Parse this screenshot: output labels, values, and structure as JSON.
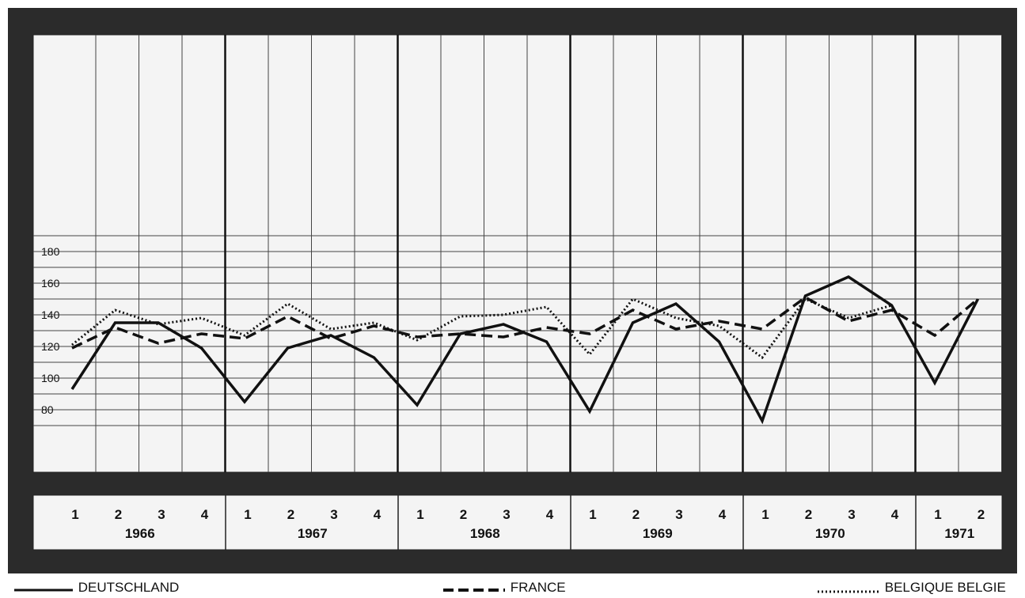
{
  "chart_data": {
    "type": "line",
    "x": [
      "1966-1",
      "1966-2",
      "1966-3",
      "1966-4",
      "1967-1",
      "1967-2",
      "1967-3",
      "1967-4",
      "1968-1",
      "1968-2",
      "1968-3",
      "1968-4",
      "1969-1",
      "1969-2",
      "1969-3",
      "1969-4",
      "1970-1",
      "1970-2",
      "1970-3",
      "1970-4",
      "1971-1",
      "1971-2"
    ],
    "quarter_labels": [
      "1",
      "2",
      "3",
      "4",
      "1",
      "2",
      "3",
      "4",
      "1",
      "2",
      "3",
      "4",
      "1",
      "2",
      "3",
      "4",
      "1",
      "2",
      "3",
      "4",
      "1",
      "2"
    ],
    "years": [
      {
        "label": "1966",
        "quarters": 4
      },
      {
        "label": "1967",
        "quarters": 4
      },
      {
        "label": "1968",
        "quarters": 4
      },
      {
        "label": "1969",
        "quarters": 4
      },
      {
        "label": "1970",
        "quarters": 4
      },
      {
        "label": "1971",
        "quarters": 2
      }
    ],
    "y_ticks": [
      80,
      100,
      120,
      140,
      160,
      180
    ],
    "ylim": [
      70,
      190
    ],
    "grid": true,
    "legend_position": "bottom",
    "series": [
      {
        "name": "DEUTSCHLAND",
        "style": "solid",
        "values": [
          93,
          135,
          135,
          119,
          85,
          119,
          127,
          113,
          83,
          128,
          134,
          123,
          79,
          135,
          147,
          123,
          73,
          152,
          164,
          146,
          97,
          150
        ]
      },
      {
        "name": "FRANCE",
        "style": "dashed",
        "values": [
          119,
          132,
          122,
          128,
          125,
          139,
          125,
          133,
          126,
          128,
          126,
          132,
          128,
          143,
          131,
          136,
          131,
          151,
          136,
          143,
          127,
          150
        ]
      },
      {
        "name": "BELGIQUE BELGIE",
        "style": "dotted",
        "values": [
          121,
          143,
          134,
          138,
          127,
          147,
          131,
          135,
          124,
          139,
          140,
          145,
          115,
          150,
          138,
          133,
          113,
          150,
          138,
          146,
          null,
          null
        ]
      }
    ]
  }
}
